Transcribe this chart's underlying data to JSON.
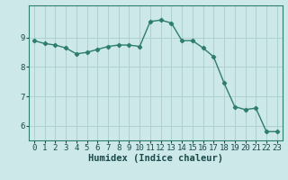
{
  "x": [
    0,
    1,
    2,
    3,
    4,
    5,
    6,
    7,
    8,
    9,
    10,
    11,
    12,
    13,
    14,
    15,
    16,
    17,
    18,
    19,
    20,
    21,
    22,
    23
  ],
  "y": [
    8.9,
    8.8,
    8.75,
    8.65,
    8.45,
    8.5,
    8.6,
    8.7,
    8.75,
    8.75,
    8.7,
    9.55,
    9.6,
    9.5,
    8.9,
    8.9,
    8.65,
    8.35,
    7.45,
    6.65,
    6.55,
    6.6,
    5.8,
    5.8
  ],
  "line_color": "#2e7d6e",
  "marker": "D",
  "marker_size": 2.2,
  "bg_color": "#cce8e8",
  "grid_color": "#aed0d0",
  "xlabel": "Humidex (Indice chaleur)",
  "xlim": [
    -0.5,
    23.5
  ],
  "ylim": [
    5.5,
    10.1
  ],
  "yticks": [
    6,
    7,
    8,
    9
  ],
  "xticks": [
    0,
    1,
    2,
    3,
    4,
    5,
    6,
    7,
    8,
    9,
    10,
    11,
    12,
    13,
    14,
    15,
    16,
    17,
    18,
    19,
    20,
    21,
    22,
    23
  ],
  "xlabel_fontsize": 7.5,
  "tick_fontsize": 6.5,
  "line_width": 1.0
}
